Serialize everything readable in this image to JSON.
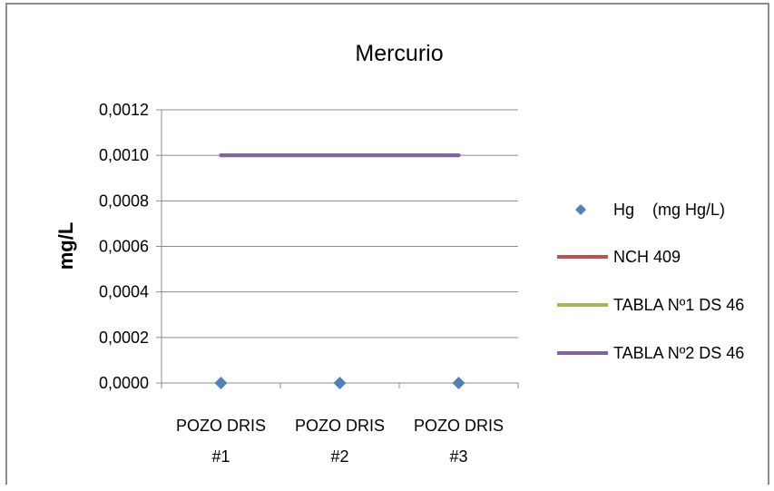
{
  "chart_data": {
    "type": "line",
    "title": "Mercurio",
    "xlabel": "",
    "ylabel": "mg/L",
    "categories": [
      [
        "POZO DRIS",
        "#1"
      ],
      [
        "POZO DRIS",
        "#2"
      ],
      [
        "POZO DRIS",
        "#3"
      ]
    ],
    "ylim": [
      0,
      0.0012
    ],
    "yticks": [
      0,
      0.0002,
      0.0004,
      0.0006,
      0.0008,
      0.001,
      0.0012
    ],
    "ytick_labels": [
      "0,0000",
      "0,0002",
      "0,0004",
      "0,0006",
      "0,0008",
      "0,0010",
      "0,0012"
    ],
    "grid": true,
    "legend_position": "right",
    "series": [
      {
        "name": "Hg    (mg Hg/L)",
        "type": "scatter",
        "marker": "diamond",
        "color": "#4f81bd",
        "values": [
          0,
          0,
          0
        ]
      },
      {
        "name": "NCH 409",
        "type": "line",
        "color": "#c0504d",
        "values": [
          0.001,
          0.001,
          0.001
        ]
      },
      {
        "name": "TABLA Nº1 DS 46",
        "type": "line",
        "color": "#9bbb59",
        "values": [
          0.001,
          0.001,
          0.001
        ]
      },
      {
        "name": "TABLA Nº2 DS 46",
        "type": "line",
        "color": "#8064a2",
        "values": [
          0.001,
          0.001,
          0.001
        ]
      }
    ]
  }
}
